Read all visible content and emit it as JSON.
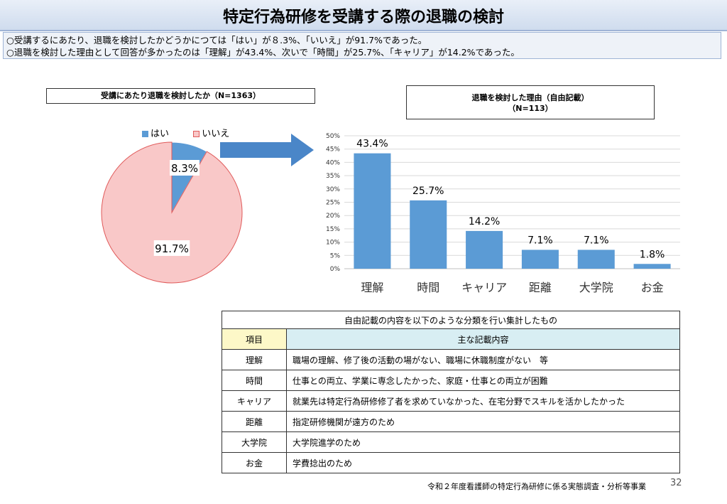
{
  "title": "特定行為研修を受講する際の退職の検討",
  "summary": [
    "○受講するにあたり、退職を検討したかどうかにつては「はい」が８.3%、「いいえ」が91.7%であった。",
    "○退職を検討した理由として回答が多かったのは「理解」が43.4%、次いで「時間」が25.7%、「キャリア」が14.2%であった。"
  ],
  "pie_box_title": "受講にあたり退職を検討したか（N=1363）",
  "bar_box_title_1": "退職を検討した理由（自由記載）",
  "bar_box_title_2": "（N=113）",
  "colors": {
    "blue": "#5b9bd5",
    "pink": "#f9c8c8",
    "pink_edge": "#e05a5a",
    "header_yellow": "#fdf8c8",
    "header_blue": "#d8eef3"
  },
  "chart_data": [
    {
      "type": "pie",
      "title": "受講にあたり退職を検討したか（N=1363）",
      "labels": [
        "はい",
        "いいえ"
      ],
      "values": [
        8.3,
        91.7
      ],
      "data_labels": [
        "8.3%",
        "91.7%"
      ],
      "legend_position": "top"
    },
    {
      "type": "bar",
      "title": "退職を検討した理由（自由記載）（N=113）",
      "categories": [
        "理解",
        "時間",
        "キャリア",
        "距離",
        "大学院",
        "お金"
      ],
      "values": [
        43.4,
        25.7,
        14.2,
        7.1,
        7.1,
        1.8
      ],
      "data_labels": [
        "43.4%",
        "25.7%",
        "14.2%",
        "7.1%",
        "7.1%",
        "1.8%"
      ],
      "ylim": [
        0,
        50
      ],
      "yticks": [
        "0%",
        "5%",
        "10%",
        "15%",
        "20%",
        "25%",
        "30%",
        "35%",
        "40%",
        "45%",
        "50%"
      ],
      "grid": true
    }
  ],
  "table": {
    "caption": "自由記載の内容を以下のような分類を行い集計したもの",
    "headers": [
      "項目",
      "主な記載内容"
    ],
    "rows": [
      {
        "item": "理解",
        "content": "職場の理解、修了後の活動の場がない、職場に休職制度がない　等"
      },
      {
        "item": "時間",
        "content": "仕事との両立、学業に専念したかった、家庭・仕事との両立が困難"
      },
      {
        "item": "キャリア",
        "content": "就業先は特定行為研修修了者を求めていなかった、在宅分野でスキルを活かしたかった"
      },
      {
        "item": "距離",
        "content": "指定研修機関が遠方のため"
      },
      {
        "item": "大学院",
        "content": "大学院進学のため"
      },
      {
        "item": "お金",
        "content": "学費捻出のため"
      }
    ]
  },
  "footer": "令和２年度看護師の特定行為研修に係る実態調査・分析等事業",
  "page_number": "32"
}
